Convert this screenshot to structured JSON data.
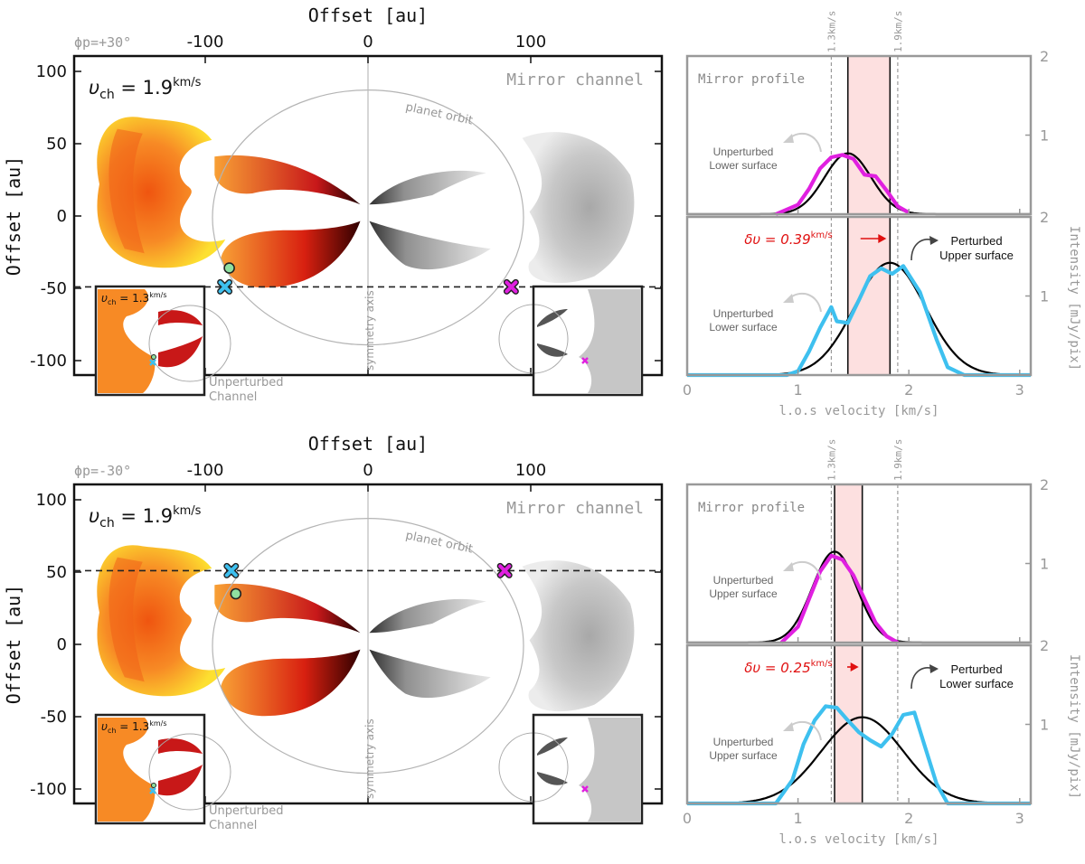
{
  "figure": {
    "panels": [
      {
        "phi_label": "ϕp=+30°",
        "map": {
          "xlabel": "Offset [au]",
          "ylabel": "Offset [au]",
          "xticks": [
            "-100",
            "0",
            "100"
          ],
          "yticks": [
            "100",
            "50",
            "0",
            "-50",
            "-100"
          ],
          "channel_label": "υch = 1.9km/s",
          "channel_label_prefix": "υ",
          "channel_label_sub": "ch",
          "channel_label_value": " = 1.9",
          "channel_label_unit": "km/s",
          "mirror_label": "Mirror channel",
          "orbit_label": "planet orbit",
          "axis_label": "symmetry axis",
          "inset_label": "υch = 1.3km/s",
          "inset_value": " = 1.3",
          "inset_unit": "km/s",
          "inset_caption_1": "Unperturbed",
          "inset_caption_2": "Channel",
          "marker_y_au": -49,
          "cross_x_au": -88,
          "circle_y_au": -36,
          "mirror_cross_x_au": 88
        },
        "profiles": {
          "mirror_title": "Mirror profile",
          "mirror_annot_1": "Unperturbed",
          "mirror_annot_2": "Lower surface",
          "lower_annot_1": "Unperturbed",
          "lower_annot_2": "Lower surface",
          "perturbed_1": "Perturbed",
          "perturbed_2": "Upper surface",
          "dv_prefix": "δυ = 0.39",
          "dv_unit": "km/s",
          "ref_1": "1.3km/s",
          "ref_2": "1.9km/s",
          "ylabel": "Intensity [mJy/pix]",
          "xlabel": "l.o.s velocity [km/s]",
          "xticks": [
            "0",
            "1",
            "2",
            "3"
          ],
          "yticks_top": [
            "2",
            "1"
          ],
          "yticks_bottom": [
            "2",
            "1"
          ]
        }
      },
      {
        "phi_label": "ϕp=-30°",
        "map": {
          "xlabel": "Offset [au]",
          "ylabel": "Offset [au]",
          "xticks": [
            "-100",
            "0",
            "100"
          ],
          "yticks": [
            "100",
            "50",
            "0",
            "-50",
            "-100"
          ],
          "channel_label": "υch = 1.9km/s",
          "channel_label_prefix": "υ",
          "channel_label_sub": "ch",
          "channel_label_value": " = 1.9",
          "channel_label_unit": "km/s",
          "mirror_label": "Mirror channel",
          "orbit_label": "planet orbit",
          "axis_label": "symmetry axis",
          "inset_label": "υch = 1.3km/s",
          "inset_value": " = 1.3",
          "inset_unit": "km/s",
          "inset_caption_1": "Unperturbed",
          "inset_caption_2": "Channel",
          "marker_y_au": 51,
          "cross_x_au": -84,
          "circle_y_au": 35,
          "mirror_cross_x_au": 84
        },
        "profiles": {
          "mirror_title": "Mirror profile",
          "mirror_annot_1": "Unperturbed",
          "mirror_annot_2": "Upper surface",
          "lower_annot_1": "Unperturbed",
          "lower_annot_2": "Upper surface",
          "perturbed_1": "Perturbed",
          "perturbed_2": "Lower surface",
          "dv_prefix": "δυ = 0.25",
          "dv_unit": "km/s",
          "ref_1": "1.3km/s",
          "ref_2": "1.9km/s",
          "ylabel": "Intensity [mJy/pix]",
          "xlabel": "l.o.s velocity [km/s]",
          "xticks": [
            "0",
            "1",
            "2",
            "3"
          ],
          "yticks_top": [
            "2",
            "1"
          ],
          "yticks_bottom": [
            "2",
            "1"
          ]
        }
      }
    ]
  },
  "chart_data": [
    {
      "type": "line",
      "panel": "top-mirror-profile",
      "xlim": [
        0,
        3.1
      ],
      "ylim": [
        0,
        2
      ],
      "series": [
        {
          "name": "mirror",
          "color": "#e020e0",
          "x": [
            0.8,
            1.0,
            1.1,
            1.2,
            1.3,
            1.4,
            1.5,
            1.6,
            1.7,
            1.8,
            1.9,
            2.0
          ],
          "y": [
            0.0,
            0.12,
            0.32,
            0.58,
            0.72,
            0.75,
            0.7,
            0.5,
            0.48,
            0.3,
            0.1,
            0.02
          ]
        },
        {
          "name": "gaussian",
          "color": "#000000",
          "mu": 1.45,
          "sigma": 0.21,
          "amp": 0.77
        }
      ],
      "vlines": {
        "solid": [
          1.45,
          1.83
        ],
        "dashed": [
          1.3,
          1.9
        ],
        "shaded": [
          1.45,
          1.83
        ]
      }
    },
    {
      "type": "line",
      "panel": "top-perturbed-profile",
      "xlim": [
        0,
        3.1
      ],
      "ylim": [
        0,
        2
      ],
      "series": [
        {
          "name": "perturbed",
          "color": "#3ec0ef",
          "x": [
            0,
            0.9,
            1.0,
            1.1,
            1.2,
            1.3,
            1.35,
            1.45,
            1.55,
            1.65,
            1.75,
            1.85,
            1.95,
            2.1,
            2.25,
            2.35,
            2.5,
            3.1
          ],
          "y": [
            0,
            0,
            0.05,
            0.3,
            0.6,
            0.86,
            0.68,
            0.66,
            0.95,
            1.25,
            1.35,
            1.28,
            1.38,
            1.05,
            0.45,
            0.1,
            0,
            0
          ]
        },
        {
          "name": "gaussian",
          "color": "#000000",
          "mu": 1.83,
          "sigma": 0.32,
          "amp": 1.42
        }
      ],
      "vlines": {
        "solid": [
          1.45,
          1.83
        ],
        "dashed": [
          1.3,
          1.9
        ],
        "shaded": [
          1.45,
          1.83
        ]
      }
    },
    {
      "type": "line",
      "panel": "bottom-mirror-profile",
      "xlim": [
        0,
        3.1
      ],
      "ylim": [
        0,
        2
      ],
      "series": [
        {
          "name": "mirror",
          "color": "#e020e0",
          "x": [
            0.85,
            1.0,
            1.1,
            1.2,
            1.3,
            1.4,
            1.5,
            1.6,
            1.7,
            1.8,
            1.9
          ],
          "y": [
            0.0,
            0.2,
            0.55,
            0.9,
            1.1,
            1.05,
            0.85,
            0.55,
            0.25,
            0.08,
            0.0
          ]
        },
        {
          "name": "gaussian",
          "color": "#000000",
          "mu": 1.33,
          "sigma": 0.2,
          "amp": 1.15
        }
      ],
      "vlines": {
        "solid": [
          1.33,
          1.58
        ],
        "dashed": [
          1.3,
          1.9
        ],
        "shaded": [
          1.33,
          1.58
        ]
      }
    },
    {
      "type": "line",
      "panel": "bottom-perturbed-profile",
      "xlim": [
        0,
        3.1
      ],
      "ylim": [
        0,
        2
      ],
      "series": [
        {
          "name": "perturbed",
          "color": "#3ec0ef",
          "x": [
            0,
            0.8,
            0.95,
            1.05,
            1.15,
            1.25,
            1.35,
            1.45,
            1.55,
            1.65,
            1.75,
            1.85,
            1.95,
            2.05,
            2.15,
            2.25,
            2.35,
            3.1
          ],
          "y": [
            0,
            0,
            0.3,
            0.75,
            1.05,
            1.23,
            1.21,
            1.05,
            0.9,
            0.8,
            0.72,
            0.88,
            1.12,
            1.15,
            0.7,
            0.25,
            0,
            0
          ]
        },
        {
          "name": "gaussian",
          "color": "#000000",
          "mu": 1.58,
          "sigma": 0.37,
          "amp": 1.09
        }
      ],
      "vlines": {
        "solid": [
          1.33,
          1.58
        ],
        "dashed": [
          1.3,
          1.9
        ],
        "shaded": [
          1.33,
          1.58
        ]
      }
    }
  ]
}
